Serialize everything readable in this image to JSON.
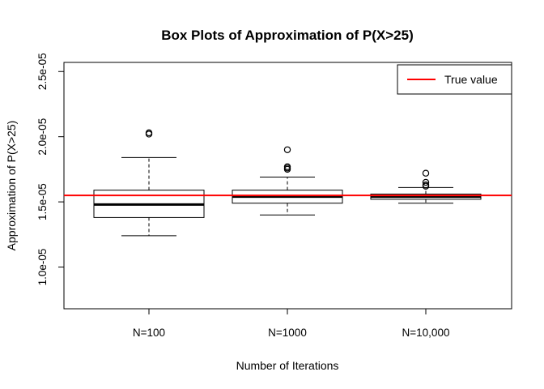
{
  "chart_data": {
    "type": "boxplot",
    "title": "Box Plots of Approximation of P(X>25)",
    "xlabel": "Number of Iterations",
    "ylabel": "Approximation of P(X>25)",
    "categories": [
      "N=100",
      "N=1000",
      "N=10,000"
    ],
    "ylim": [
      6.8e-06,
      2.57e-05
    ],
    "yticks": [
      1e-05,
      1.5e-05,
      2e-05,
      2.5e-05
    ],
    "ytick_labels": [
      "1.0e-05",
      "1.5e-05",
      "2.0e-05",
      "2.5e-05"
    ],
    "boxes": [
      {
        "name": "N=100",
        "whisker_low": 1.24e-05,
        "q1": 1.38e-05,
        "median": 1.48e-05,
        "q3": 1.59e-05,
        "whisker_high": 1.84e-05,
        "outliers": [
          2.03e-05,
          2.02e-05
        ]
      },
      {
        "name": "N=1000",
        "whisker_low": 1.4e-05,
        "q1": 1.49e-05,
        "median": 1.54e-05,
        "q3": 1.59e-05,
        "whisker_high": 1.69e-05,
        "outliers": [
          1.9e-05,
          1.77e-05,
          1.76e-05,
          1.75e-05
        ]
      },
      {
        "name": "N=10,000",
        "whisker_low": 1.49e-05,
        "q1": 1.52e-05,
        "median": 1.54e-05,
        "q3": 1.56e-05,
        "whisker_high": 1.61e-05,
        "outliers": [
          1.72e-05,
          1.65e-05,
          1.63e-05,
          1.62e-05
        ]
      }
    ],
    "reference_line": {
      "label": "True value",
      "value": 1.55e-05,
      "color": "#ff0000"
    },
    "legend": {
      "position": "top-right",
      "entries": [
        "True value"
      ]
    },
    "grid": false
  }
}
